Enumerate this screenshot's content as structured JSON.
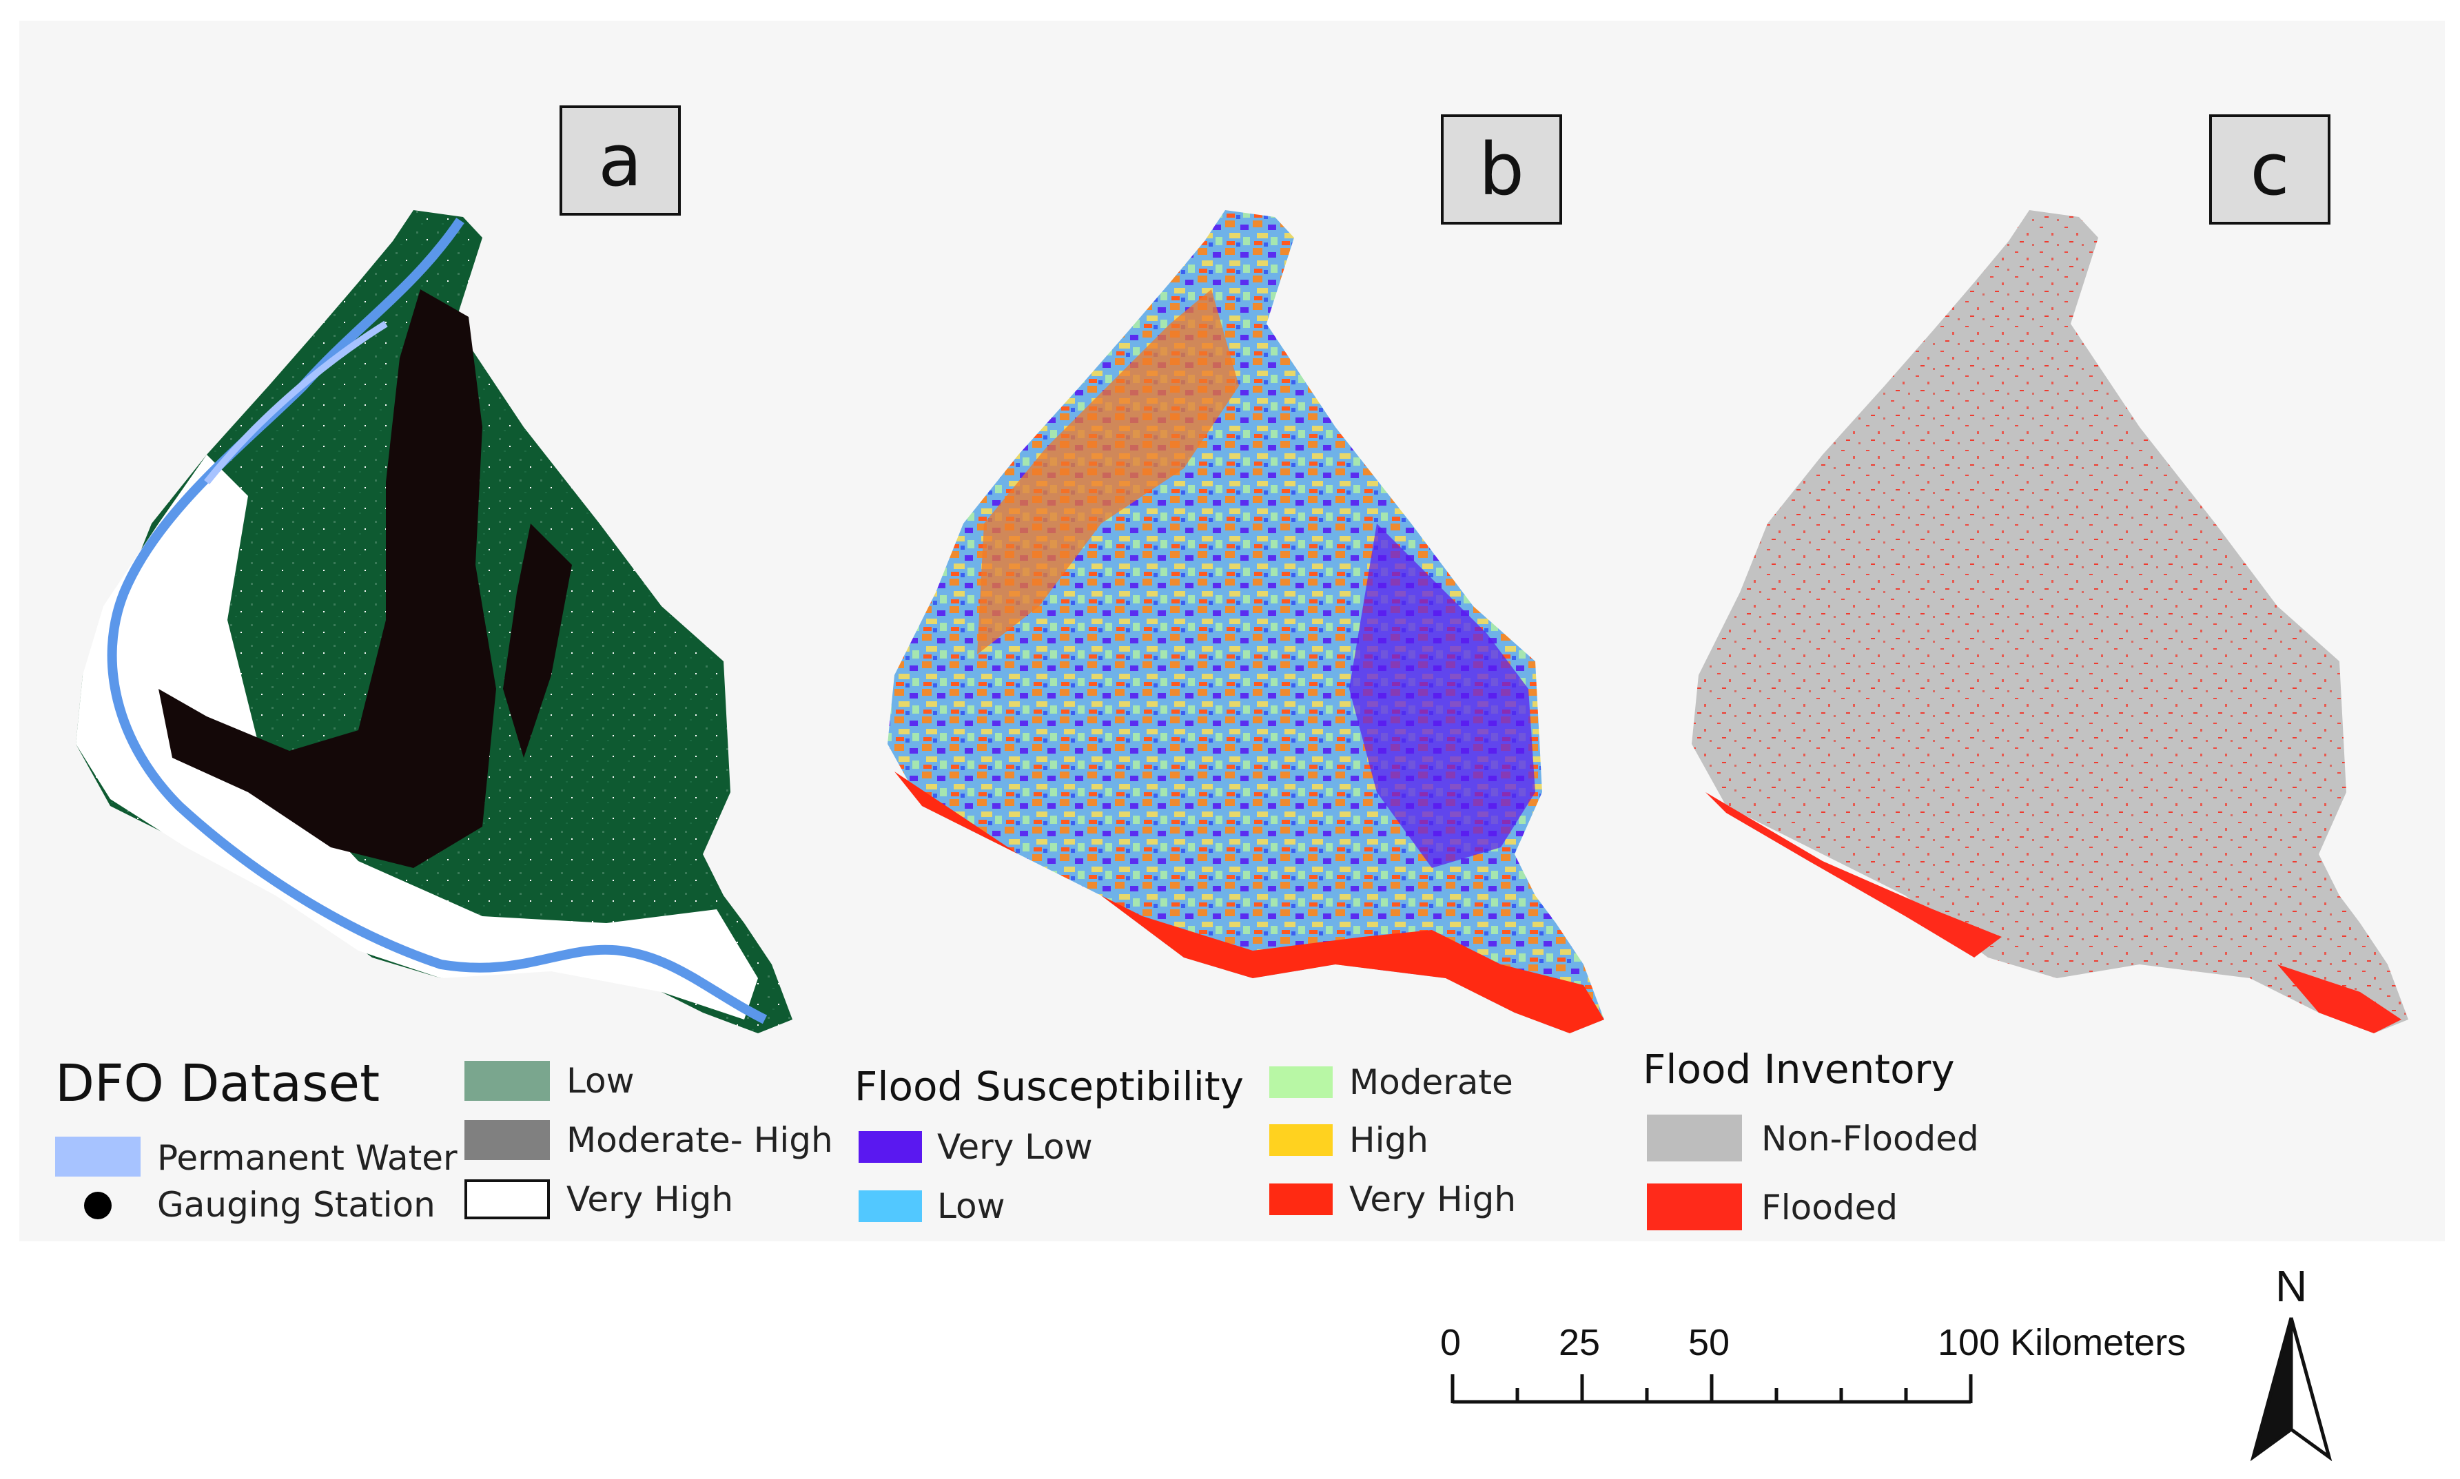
{
  "panels": {
    "a": {
      "label": "a"
    },
    "b": {
      "label": "b"
    },
    "c": {
      "label": "c"
    }
  },
  "legend_a": {
    "title": "DFO Dataset",
    "items": [
      {
        "label": "Permanent Water",
        "color": "#a7c3ff"
      },
      {
        "label": "Gauging Station",
        "color": "#000000"
      },
      {
        "label": "Low",
        "color": "#7aa68e"
      },
      {
        "label": "Moderate- High",
        "color": "#808080"
      },
      {
        "label": "Very High",
        "color": "#ffffff"
      }
    ]
  },
  "legend_b": {
    "title": "Flood Susceptibility",
    "items": [
      {
        "label": "Very Low",
        "color": "#5a18f0"
      },
      {
        "label": "Low",
        "color": "#52c8ff"
      },
      {
        "label": "Moderate",
        "color": "#b8f7a5"
      },
      {
        "label": "High",
        "color": "#ffd21f"
      },
      {
        "label": "Very High",
        "color": "#ff2a12"
      }
    ]
  },
  "legend_c": {
    "title": "Flood Inventory",
    "items": [
      {
        "label": "Non-Flooded",
        "color": "#bdbdbd"
      },
      {
        "label": "Flooded",
        "color": "#ff2a1a"
      }
    ]
  },
  "scale_bar": {
    "ticks": [
      "0",
      "25",
      "50",
      "100 Kilometers"
    ]
  },
  "north_arrow": {
    "label": "N"
  },
  "map_colors": {
    "dfo_low_green": "#0e5a31",
    "dfo_high_black": "#140808",
    "water_blue": "#5b97ea",
    "susc_orange": "#f07a2a",
    "inventory_grey": "#c2c2c2"
  }
}
